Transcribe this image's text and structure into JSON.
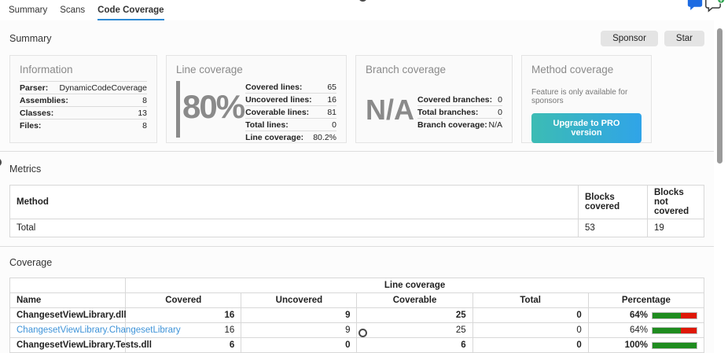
{
  "tabs": [
    {
      "label": "Summary"
    },
    {
      "label": "Scans"
    },
    {
      "label": "Code Coverage",
      "active": true
    }
  ],
  "header_icons": [
    "comment-icon",
    "add-comment-icon"
  ],
  "summary": {
    "title": "Summary",
    "buttons": {
      "sponsor": "Sponsor",
      "star": "Star"
    },
    "cards": {
      "information": {
        "title": "Information",
        "rows": [
          [
            "Parser:",
            "DynamicCodeCoverage"
          ],
          [
            "Assemblies:",
            "8"
          ],
          [
            "Classes:",
            "13"
          ],
          [
            "Files:",
            "8"
          ]
        ]
      },
      "line_coverage": {
        "title": "Line coverage",
        "big_value": "80%",
        "rows": [
          [
            "Covered lines:",
            "65"
          ],
          [
            "Uncovered lines:",
            "16"
          ],
          [
            "Coverable lines:",
            "81"
          ],
          [
            "Total lines:",
            "0"
          ],
          [
            "Line coverage:",
            "80.2%"
          ]
        ]
      },
      "branch_coverage": {
        "title": "Branch coverage",
        "big_value": "N/A",
        "rows": [
          [
            "Covered branches:",
            "0"
          ],
          [
            "Total branches:",
            "0"
          ],
          [
            "Branch coverage:",
            "N/A"
          ]
        ]
      },
      "method_coverage": {
        "title": "Method coverage",
        "note": "Feature is only available for sponsors",
        "button_label": "Upgrade to PRO version"
      }
    }
  },
  "metrics": {
    "title": "Metrics",
    "columns": [
      "Method",
      "Blocks covered",
      "Blocks not covered"
    ],
    "rows": [
      {
        "method": "Total",
        "blocks_covered": "53",
        "blocks_not_covered": "19"
      }
    ]
  },
  "coverage": {
    "title": "Coverage",
    "group_header": "Line coverage",
    "columns": [
      "Name",
      "Covered",
      "Uncovered",
      "Coverable",
      "Total",
      "Percentage"
    ],
    "rows": [
      {
        "name": "ChangesetViewLibrary.dll",
        "covered": "16",
        "uncovered": "9",
        "coverable": "25",
        "total": "0",
        "percentage": "64%",
        "pct": 64
      },
      {
        "name": "ChangesetViewLibrary.ChangesetLibrary",
        "covered": "16",
        "uncovered": "9",
        "coverable": "25",
        "total": "0",
        "percentage": "64%",
        "pct": 64
      },
      {
        "name": "ChangesetViewLibrary.Tests.dll",
        "covered": "6",
        "uncovered": "0",
        "coverable": "6",
        "total": "0",
        "percentage": "100%",
        "pct": 100
      }
    ]
  },
  "colors": {
    "tab_accent": "#2d8ad4",
    "link_blue": "#3e93d8",
    "bar_green": "#1f8c1f",
    "bar_red": "#df1807",
    "upgrade_gradient_start": "#3cbcb4",
    "upgrade_gradient_end": "#30a4e8",
    "comment_icon_blue": "#1d6be2",
    "badge_green": "#2da44e"
  }
}
